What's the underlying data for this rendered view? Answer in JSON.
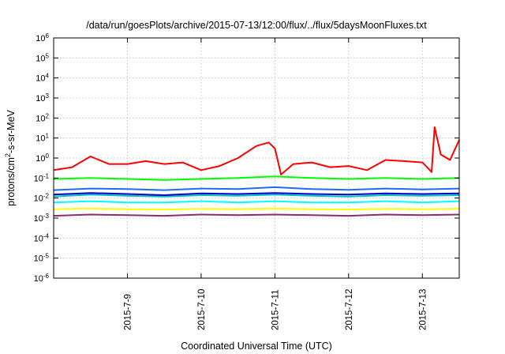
{
  "chart_data": {
    "type": "line",
    "title": "/data/run/goesPlots/archive/2015-07-13/12:00/flux/../flux/5daysMoonFluxes.txt",
    "xlabel": "Coordinated Universal Time (UTC)",
    "ylabel": {
      "prefix": "protons/cm",
      "sup": "2",
      "suffix": "-s-sr-MeV"
    },
    "yscale": "log",
    "ylim": [
      1e-06,
      1000000.0
    ],
    "xlim": [
      "2015-07-08T00:00",
      "2015-07-13T12:00"
    ],
    "y_ticks": [
      {
        "base": "10",
        "exp": "-6",
        "value": 1e-06
      },
      {
        "base": "10",
        "exp": "-5",
        "value": 1e-05
      },
      {
        "base": "10",
        "exp": "-4",
        "value": 0.0001
      },
      {
        "base": "10",
        "exp": "-3",
        "value": 0.001
      },
      {
        "base": "10",
        "exp": "-2",
        "value": 0.01
      },
      {
        "base": "10",
        "exp": "-1",
        "value": 0.1
      },
      {
        "base": "10",
        "exp": "0",
        "value": 1
      },
      {
        "base": "10",
        "exp": "1",
        "value": 10
      },
      {
        "base": "10",
        "exp": "2",
        "value": 100
      },
      {
        "base": "10",
        "exp": "3",
        "value": 1000
      },
      {
        "base": "10",
        "exp": "4",
        "value": 10000
      },
      {
        "base": "10",
        "exp": "5",
        "value": 100000
      },
      {
        "base": "10",
        "exp": "6",
        "value": 1000000
      }
    ],
    "x_ticks": [
      {
        "label": "2015-7-9",
        "value": "2015-07-09T00:00"
      },
      {
        "label": "2015-7-10",
        "value": "2015-07-10T00:00"
      },
      {
        "label": "2015-7-11",
        "value": "2015-07-11T00:00"
      },
      {
        "label": "2015-7-12",
        "value": "2015-07-12T00:00"
      },
      {
        "label": "2015-7-13",
        "value": "2015-07-13T00:00"
      }
    ],
    "grid": true,
    "legend": "none",
    "series": [
      {
        "color": "#ff0000",
        "x": [
          "2015-07-08T00:00",
          "2015-07-08T06:00",
          "2015-07-08T12:00",
          "2015-07-08T18:00",
          "2015-07-09T00:00",
          "2015-07-09T06:00",
          "2015-07-09T12:00",
          "2015-07-09T18:00",
          "2015-07-10T00:00",
          "2015-07-10T06:00",
          "2015-07-10T12:00",
          "2015-07-10T18:00",
          "2015-07-10T22:00",
          "2015-07-11T00:00",
          "2015-07-11T02:00",
          "2015-07-11T06:00",
          "2015-07-11T12:00",
          "2015-07-11T18:00",
          "2015-07-12T00:00",
          "2015-07-12T06:00",
          "2015-07-12T12:00",
          "2015-07-12T18:00",
          "2015-07-13T00:00",
          "2015-07-13T03:00",
          "2015-07-13T04:00",
          "2015-07-13T06:00",
          "2015-07-13T09:00",
          "2015-07-13T12:00"
        ],
        "y": [
          0.25,
          0.35,
          1.2,
          0.5,
          0.5,
          0.7,
          0.5,
          0.6,
          0.25,
          0.4,
          1.0,
          4.0,
          6.0,
          3.0,
          0.15,
          0.5,
          0.6,
          0.35,
          0.4,
          0.25,
          0.8,
          0.7,
          0.6,
          0.2,
          35,
          1.5,
          0.8,
          8
        ]
      },
      {
        "color": "#00ff00",
        "x": [
          "2015-07-08T00:00",
          "2015-07-08T12:00",
          "2015-07-09T00:00",
          "2015-07-09T12:00",
          "2015-07-10T00:00",
          "2015-07-10T12:00",
          "2015-07-11T00:00",
          "2015-07-11T12:00",
          "2015-07-12T00:00",
          "2015-07-12T12:00",
          "2015-07-13T00:00",
          "2015-07-13T12:00"
        ],
        "y": [
          0.09,
          0.1,
          0.09,
          0.08,
          0.09,
          0.1,
          0.12,
          0.1,
          0.09,
          0.1,
          0.09,
          0.1
        ]
      },
      {
        "color": "#00ffff",
        "x": [
          "2015-07-08T00:00",
          "2015-07-08T12:00",
          "2015-07-09T00:00",
          "2015-07-09T12:00",
          "2015-07-10T00:00",
          "2015-07-10T12:00",
          "2015-07-11T00:00",
          "2015-07-11T12:00",
          "2015-07-12T00:00",
          "2015-07-12T12:00",
          "2015-07-13T00:00",
          "2015-07-13T12:00"
        ],
        "y": [
          0.006,
          0.007,
          0.006,
          0.006,
          0.007,
          0.006,
          0.007,
          0.006,
          0.006,
          0.007,
          0.006,
          0.007
        ]
      },
      {
        "color": "#00bfbf",
        "x": [
          "2015-07-08T00:00",
          "2015-07-08T12:00",
          "2015-07-09T00:00",
          "2015-07-09T12:00",
          "2015-07-10T00:00",
          "2015-07-10T12:00",
          "2015-07-11T00:00",
          "2015-07-11T12:00",
          "2015-07-12T00:00",
          "2015-07-12T12:00",
          "2015-07-13T00:00",
          "2015-07-13T12:00"
        ],
        "y": [
          0.012,
          0.015,
          0.013,
          0.012,
          0.014,
          0.013,
          0.015,
          0.013,
          0.012,
          0.014,
          0.013,
          0.014
        ]
      },
      {
        "color": "#1e6bff",
        "x": [
          "2015-07-08T00:00",
          "2015-07-08T12:00",
          "2015-07-09T00:00",
          "2015-07-09T12:00",
          "2015-07-10T00:00",
          "2015-07-10T12:00",
          "2015-07-11T00:00",
          "2015-07-11T12:00",
          "2015-07-12T00:00",
          "2015-07-12T12:00",
          "2015-07-13T00:00",
          "2015-07-13T12:00"
        ],
        "y": [
          0.025,
          0.03,
          0.028,
          0.025,
          0.03,
          0.028,
          0.035,
          0.028,
          0.026,
          0.03,
          0.027,
          0.03
        ]
      },
      {
        "color": "#0000cd",
        "x": [
          "2015-07-08T00:00",
          "2015-07-08T12:00",
          "2015-07-09T00:00",
          "2015-07-09T12:00",
          "2015-07-10T00:00",
          "2015-07-10T12:00",
          "2015-07-11T00:00",
          "2015-07-11T12:00",
          "2015-07-12T00:00",
          "2015-07-12T12:00",
          "2015-07-13T00:00",
          "2015-07-13T12:00"
        ],
        "y": [
          0.015,
          0.018,
          0.016,
          0.014,
          0.017,
          0.016,
          0.018,
          0.016,
          0.015,
          0.017,
          0.016,
          0.017
        ]
      },
      {
        "color": "#ffff00",
        "x": [
          "2015-07-08T00:00",
          "2015-07-08T12:00",
          "2015-07-09T00:00",
          "2015-07-09T12:00",
          "2015-07-10T00:00",
          "2015-07-10T12:00",
          "2015-07-11T00:00",
          "2015-07-11T12:00",
          "2015-07-12T00:00",
          "2015-07-12T12:00",
          "2015-07-13T00:00",
          "2015-07-13T12:00"
        ],
        "y": [
          0.0028,
          0.003,
          0.0028,
          0.0027,
          0.0029,
          0.0028,
          0.003,
          0.0028,
          0.0027,
          0.0029,
          0.0028,
          0.0029
        ]
      },
      {
        "color": "#8b2d6e",
        "x": [
          "2015-07-08T00:00",
          "2015-07-08T12:00",
          "2015-07-09T00:00",
          "2015-07-09T12:00",
          "2015-07-10T00:00",
          "2015-07-10T12:00",
          "2015-07-11T00:00",
          "2015-07-11T12:00",
          "2015-07-12T00:00",
          "2015-07-12T12:00",
          "2015-07-13T00:00",
          "2015-07-13T12:00"
        ],
        "y": [
          0.0013,
          0.0015,
          0.0014,
          0.0013,
          0.0015,
          0.0014,
          0.0015,
          0.0014,
          0.0013,
          0.0015,
          0.0014,
          0.0015
        ]
      }
    ]
  }
}
